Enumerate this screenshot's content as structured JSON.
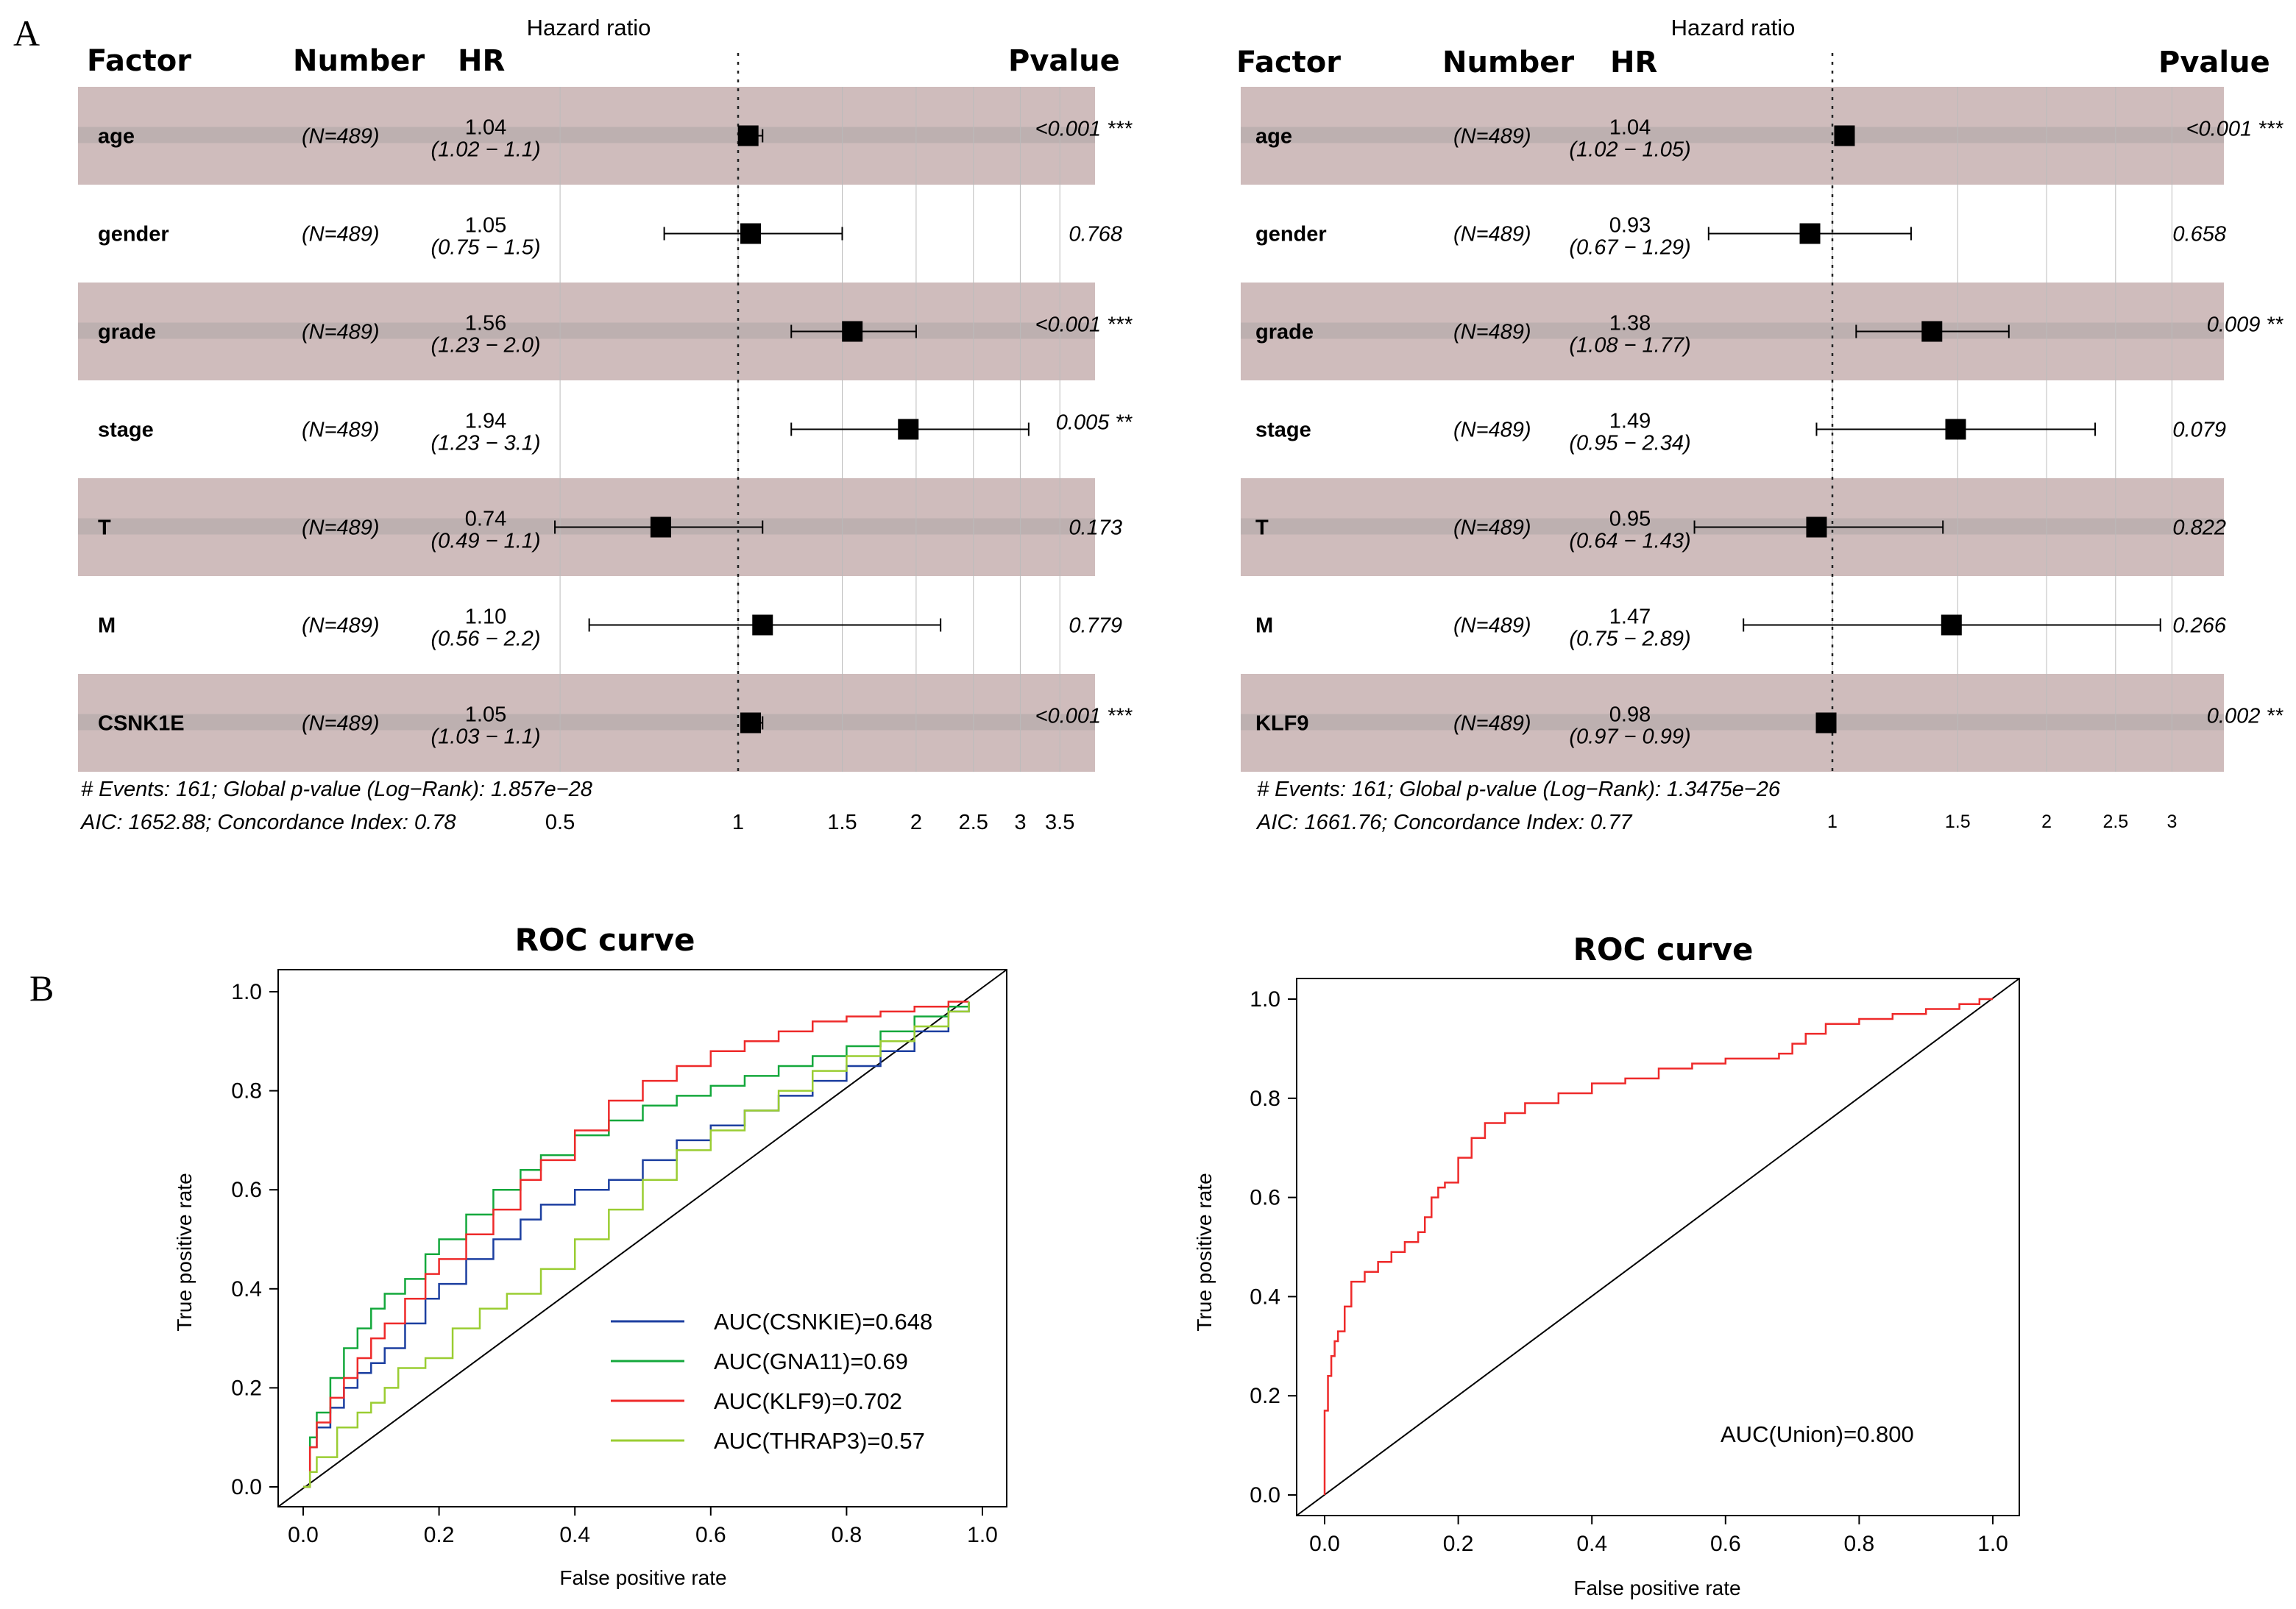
{
  "panel_labels": [
    "A",
    "B"
  ],
  "chart_data": [
    {
      "type": "forest",
      "title": "Hazard ratio",
      "columns": {
        "factor": "Factor",
        "number": "Number",
        "hr": "HR",
        "pvalue": "Pvalue"
      },
      "rows": [
        {
          "factor": "age",
          "n": "(N=489)",
          "hr": 1.04,
          "hr_text": "1.04",
          "ci_text": "(1.02 − 1.1)",
          "lo": 1.02,
          "hi": 1.1,
          "p": "<0.001",
          "stars": "***",
          "shaded": true
        },
        {
          "factor": "gender",
          "n": "(N=489)",
          "hr": 1.05,
          "hr_text": "1.05",
          "ci_text": "(0.75 − 1.5)",
          "lo": 0.75,
          "hi": 1.5,
          "p": "0.768",
          "stars": "",
          "shaded": false
        },
        {
          "factor": "grade",
          "n": "(N=489)",
          "hr": 1.56,
          "hr_text": "1.56",
          "ci_text": "(1.23 − 2.0)",
          "lo": 1.23,
          "hi": 2.0,
          "p": "<0.001",
          "stars": "***",
          "shaded": true
        },
        {
          "factor": "stage",
          "n": "(N=489)",
          "hr": 1.94,
          "hr_text": "1.94",
          "ci_text": "(1.23 − 3.1)",
          "lo": 1.23,
          "hi": 3.1,
          "p": "0.005",
          "stars": "**",
          "shaded": false
        },
        {
          "factor": "T",
          "n": "(N=489)",
          "hr": 0.74,
          "hr_text": "0.74",
          "ci_text": "(0.49 − 1.1)",
          "lo": 0.49,
          "hi": 1.1,
          "p": "0.173",
          "stars": "",
          "shaded": true
        },
        {
          "factor": "M",
          "n": "(N=489)",
          "hr": 1.1,
          "hr_text": "1.10",
          "ci_text": "(0.56 − 2.2)",
          "lo": 0.56,
          "hi": 2.2,
          "p": "0.779",
          "stars": "",
          "shaded": false
        },
        {
          "factor": "CSNK1E",
          "n": "(N=489)",
          "hr": 1.05,
          "hr_text": "1.05",
          "ci_text": "(1.03 − 1.1)",
          "lo": 1.03,
          "hi": 1.1,
          "p": "<0.001",
          "stars": "***",
          "shaded": true
        }
      ],
      "x_scale": "log",
      "x_ticks": [
        "0.5",
        "1",
        "1.5",
        "2",
        "2.5",
        "3",
        "3.5"
      ],
      "notes": [
        "# Events: 161; Global p-value (Log−Rank): 1.857e−28",
        "AIC: 1652.88; Concordance Index: 0.78"
      ]
    },
    {
      "type": "forest",
      "title": "Hazard ratio",
      "columns": {
        "factor": "Factor",
        "number": "Number",
        "hr": "HR",
        "pvalue": "Pvalue"
      },
      "rows": [
        {
          "factor": "age",
          "n": "(N=489)",
          "hr": 1.04,
          "hr_text": "1.04",
          "ci_text": "(1.02 − 1.05)",
          "lo": 1.02,
          "hi": 1.05,
          "p": "<0.001",
          "stars": "***",
          "shaded": true
        },
        {
          "factor": "gender",
          "n": "(N=489)",
          "hr": 0.93,
          "hr_text": "0.93",
          "ci_text": "(0.67 − 1.29)",
          "lo": 0.67,
          "hi": 1.29,
          "p": "0.658",
          "stars": "",
          "shaded": false
        },
        {
          "factor": "grade",
          "n": "(N=489)",
          "hr": 1.38,
          "hr_text": "1.38",
          "ci_text": "(1.08 − 1.77)",
          "lo": 1.08,
          "hi": 1.77,
          "p": "0.009",
          "stars": "**",
          "shaded": true
        },
        {
          "factor": "stage",
          "n": "(N=489)",
          "hr": 1.49,
          "hr_text": "1.49",
          "ci_text": "(0.95 − 2.34)",
          "lo": 0.95,
          "hi": 2.34,
          "p": "0.079",
          "stars": "",
          "shaded": false
        },
        {
          "factor": "T",
          "n": "(N=489)",
          "hr": 0.95,
          "hr_text": "0.95",
          "ci_text": "(0.64 − 1.43)",
          "lo": 0.64,
          "hi": 1.43,
          "p": "0.822",
          "stars": "",
          "shaded": true
        },
        {
          "factor": "M",
          "n": "(N=489)",
          "hr": 1.47,
          "hr_text": "1.47",
          "ci_text": "(0.75 − 2.89)",
          "lo": 0.75,
          "hi": 2.89,
          "p": "0.266",
          "stars": "",
          "shaded": false
        },
        {
          "factor": "KLF9",
          "n": "(N=489)",
          "hr": 0.98,
          "hr_text": "0.98",
          "ci_text": "(0.97 − 0.99)",
          "lo": 0.97,
          "hi": 0.99,
          "p": "0.002",
          "stars": "**",
          "shaded": true
        }
      ],
      "x_scale": "log",
      "x_ticks": [
        "1",
        "1.5",
        "2",
        "2.5",
        "3"
      ],
      "notes": [
        "# Events: 161; Global p-value (Log−Rank): 1.3475e−26",
        "AIC: 1661.76; Concordance Index: 0.77"
      ]
    },
    {
      "type": "line",
      "title": "ROC curve",
      "xlabel": "False positive rate",
      "ylabel": "True positive rate",
      "xlim": [
        0,
        1
      ],
      "ylim": [
        0,
        1
      ],
      "ticks": [
        "0.0",
        "0.2",
        "0.4",
        "0.6",
        "0.8",
        "1.0"
      ],
      "legend_position": "bottom-right",
      "series": [
        {
          "name": "AUC(CSNKIE)=0.648",
          "color": "#1c3fa0",
          "x": [
            0,
            0.01,
            0.02,
            0.04,
            0.06,
            0.08,
            0.1,
            0.12,
            0.15,
            0.18,
            0.2,
            0.24,
            0.28,
            0.32,
            0.35,
            0.4,
            0.45,
            0.5,
            0.55,
            0.6,
            0.65,
            0.7,
            0.75,
            0.8,
            0.85,
            0.9,
            0.95,
            0.98
          ],
          "y": [
            0,
            0.08,
            0.12,
            0.16,
            0.2,
            0.23,
            0.25,
            0.28,
            0.33,
            0.38,
            0.41,
            0.46,
            0.5,
            0.54,
            0.57,
            0.6,
            0.62,
            0.66,
            0.7,
            0.73,
            0.76,
            0.79,
            0.82,
            0.85,
            0.88,
            0.92,
            0.96,
            0.98
          ]
        },
        {
          "name": "AUC(GNA11)=0.69",
          "color": "#14a83c",
          "x": [
            0,
            0.01,
            0.02,
            0.04,
            0.06,
            0.08,
            0.1,
            0.12,
            0.15,
            0.18,
            0.2,
            0.24,
            0.28,
            0.32,
            0.35,
            0.4,
            0.45,
            0.5,
            0.55,
            0.6,
            0.65,
            0.7,
            0.75,
            0.8,
            0.85,
            0.9,
            0.95,
            0.98
          ],
          "y": [
            0,
            0.1,
            0.15,
            0.22,
            0.28,
            0.32,
            0.36,
            0.39,
            0.42,
            0.47,
            0.5,
            0.55,
            0.6,
            0.64,
            0.67,
            0.71,
            0.74,
            0.77,
            0.79,
            0.81,
            0.83,
            0.85,
            0.87,
            0.89,
            0.92,
            0.95,
            0.97,
            0.98
          ]
        },
        {
          "name": "AUC(KLF9)=0.702",
          "color": "#ee2a2a",
          "x": [
            0,
            0.01,
            0.02,
            0.04,
            0.06,
            0.08,
            0.1,
            0.12,
            0.15,
            0.18,
            0.2,
            0.24,
            0.28,
            0.32,
            0.35,
            0.4,
            0.45,
            0.5,
            0.55,
            0.6,
            0.65,
            0.7,
            0.75,
            0.8,
            0.85,
            0.9,
            0.95,
            0.98
          ],
          "y": [
            0,
            0.08,
            0.13,
            0.18,
            0.22,
            0.26,
            0.3,
            0.33,
            0.38,
            0.43,
            0.46,
            0.51,
            0.56,
            0.62,
            0.66,
            0.72,
            0.78,
            0.82,
            0.85,
            0.88,
            0.9,
            0.92,
            0.94,
            0.95,
            0.96,
            0.97,
            0.98,
            0.98
          ]
        },
        {
          "name": "AUC(THRAP3)=0.57",
          "color": "#9acd32",
          "x": [
            0,
            0.01,
            0.02,
            0.05,
            0.08,
            0.1,
            0.12,
            0.14,
            0.18,
            0.22,
            0.26,
            0.3,
            0.35,
            0.4,
            0.45,
            0.5,
            0.55,
            0.6,
            0.65,
            0.7,
            0.75,
            0.8,
            0.85,
            0.9,
            0.95,
            0.98
          ],
          "y": [
            0,
            0.03,
            0.06,
            0.12,
            0.15,
            0.17,
            0.2,
            0.24,
            0.26,
            0.32,
            0.36,
            0.39,
            0.44,
            0.5,
            0.56,
            0.62,
            0.68,
            0.72,
            0.76,
            0.8,
            0.84,
            0.87,
            0.9,
            0.93,
            0.96,
            0.98
          ]
        }
      ]
    },
    {
      "type": "line",
      "title": "ROC curve",
      "xlabel": "False positive rate",
      "ylabel": "True positive rate",
      "xlim": [
        0,
        1
      ],
      "ylim": [
        0,
        1
      ],
      "ticks": [
        "0.0",
        "0.2",
        "0.4",
        "0.6",
        "0.8",
        "1.0"
      ],
      "annotation": "AUC(Union)=0.800",
      "series": [
        {
          "name": "AUC(Union)=0.800",
          "color": "#ee2a2a",
          "x": [
            0,
            0.0,
            0.005,
            0.01,
            0.015,
            0.02,
            0.03,
            0.04,
            0.06,
            0.08,
            0.1,
            0.12,
            0.14,
            0.15,
            0.16,
            0.17,
            0.18,
            0.2,
            0.22,
            0.24,
            0.27,
            0.3,
            0.35,
            0.4,
            0.45,
            0.5,
            0.55,
            0.6,
            0.65,
            0.68,
            0.7,
            0.72,
            0.75,
            0.8,
            0.85,
            0.9,
            0.95,
            0.98,
            1.0
          ],
          "y": [
            0,
            0.17,
            0.24,
            0.28,
            0.31,
            0.33,
            0.38,
            0.43,
            0.45,
            0.47,
            0.49,
            0.51,
            0.53,
            0.56,
            0.6,
            0.62,
            0.63,
            0.68,
            0.72,
            0.75,
            0.77,
            0.79,
            0.81,
            0.83,
            0.84,
            0.86,
            0.87,
            0.88,
            0.88,
            0.89,
            0.91,
            0.93,
            0.95,
            0.96,
            0.97,
            0.98,
            0.99,
            1.0,
            1.0
          ]
        }
      ]
    }
  ]
}
